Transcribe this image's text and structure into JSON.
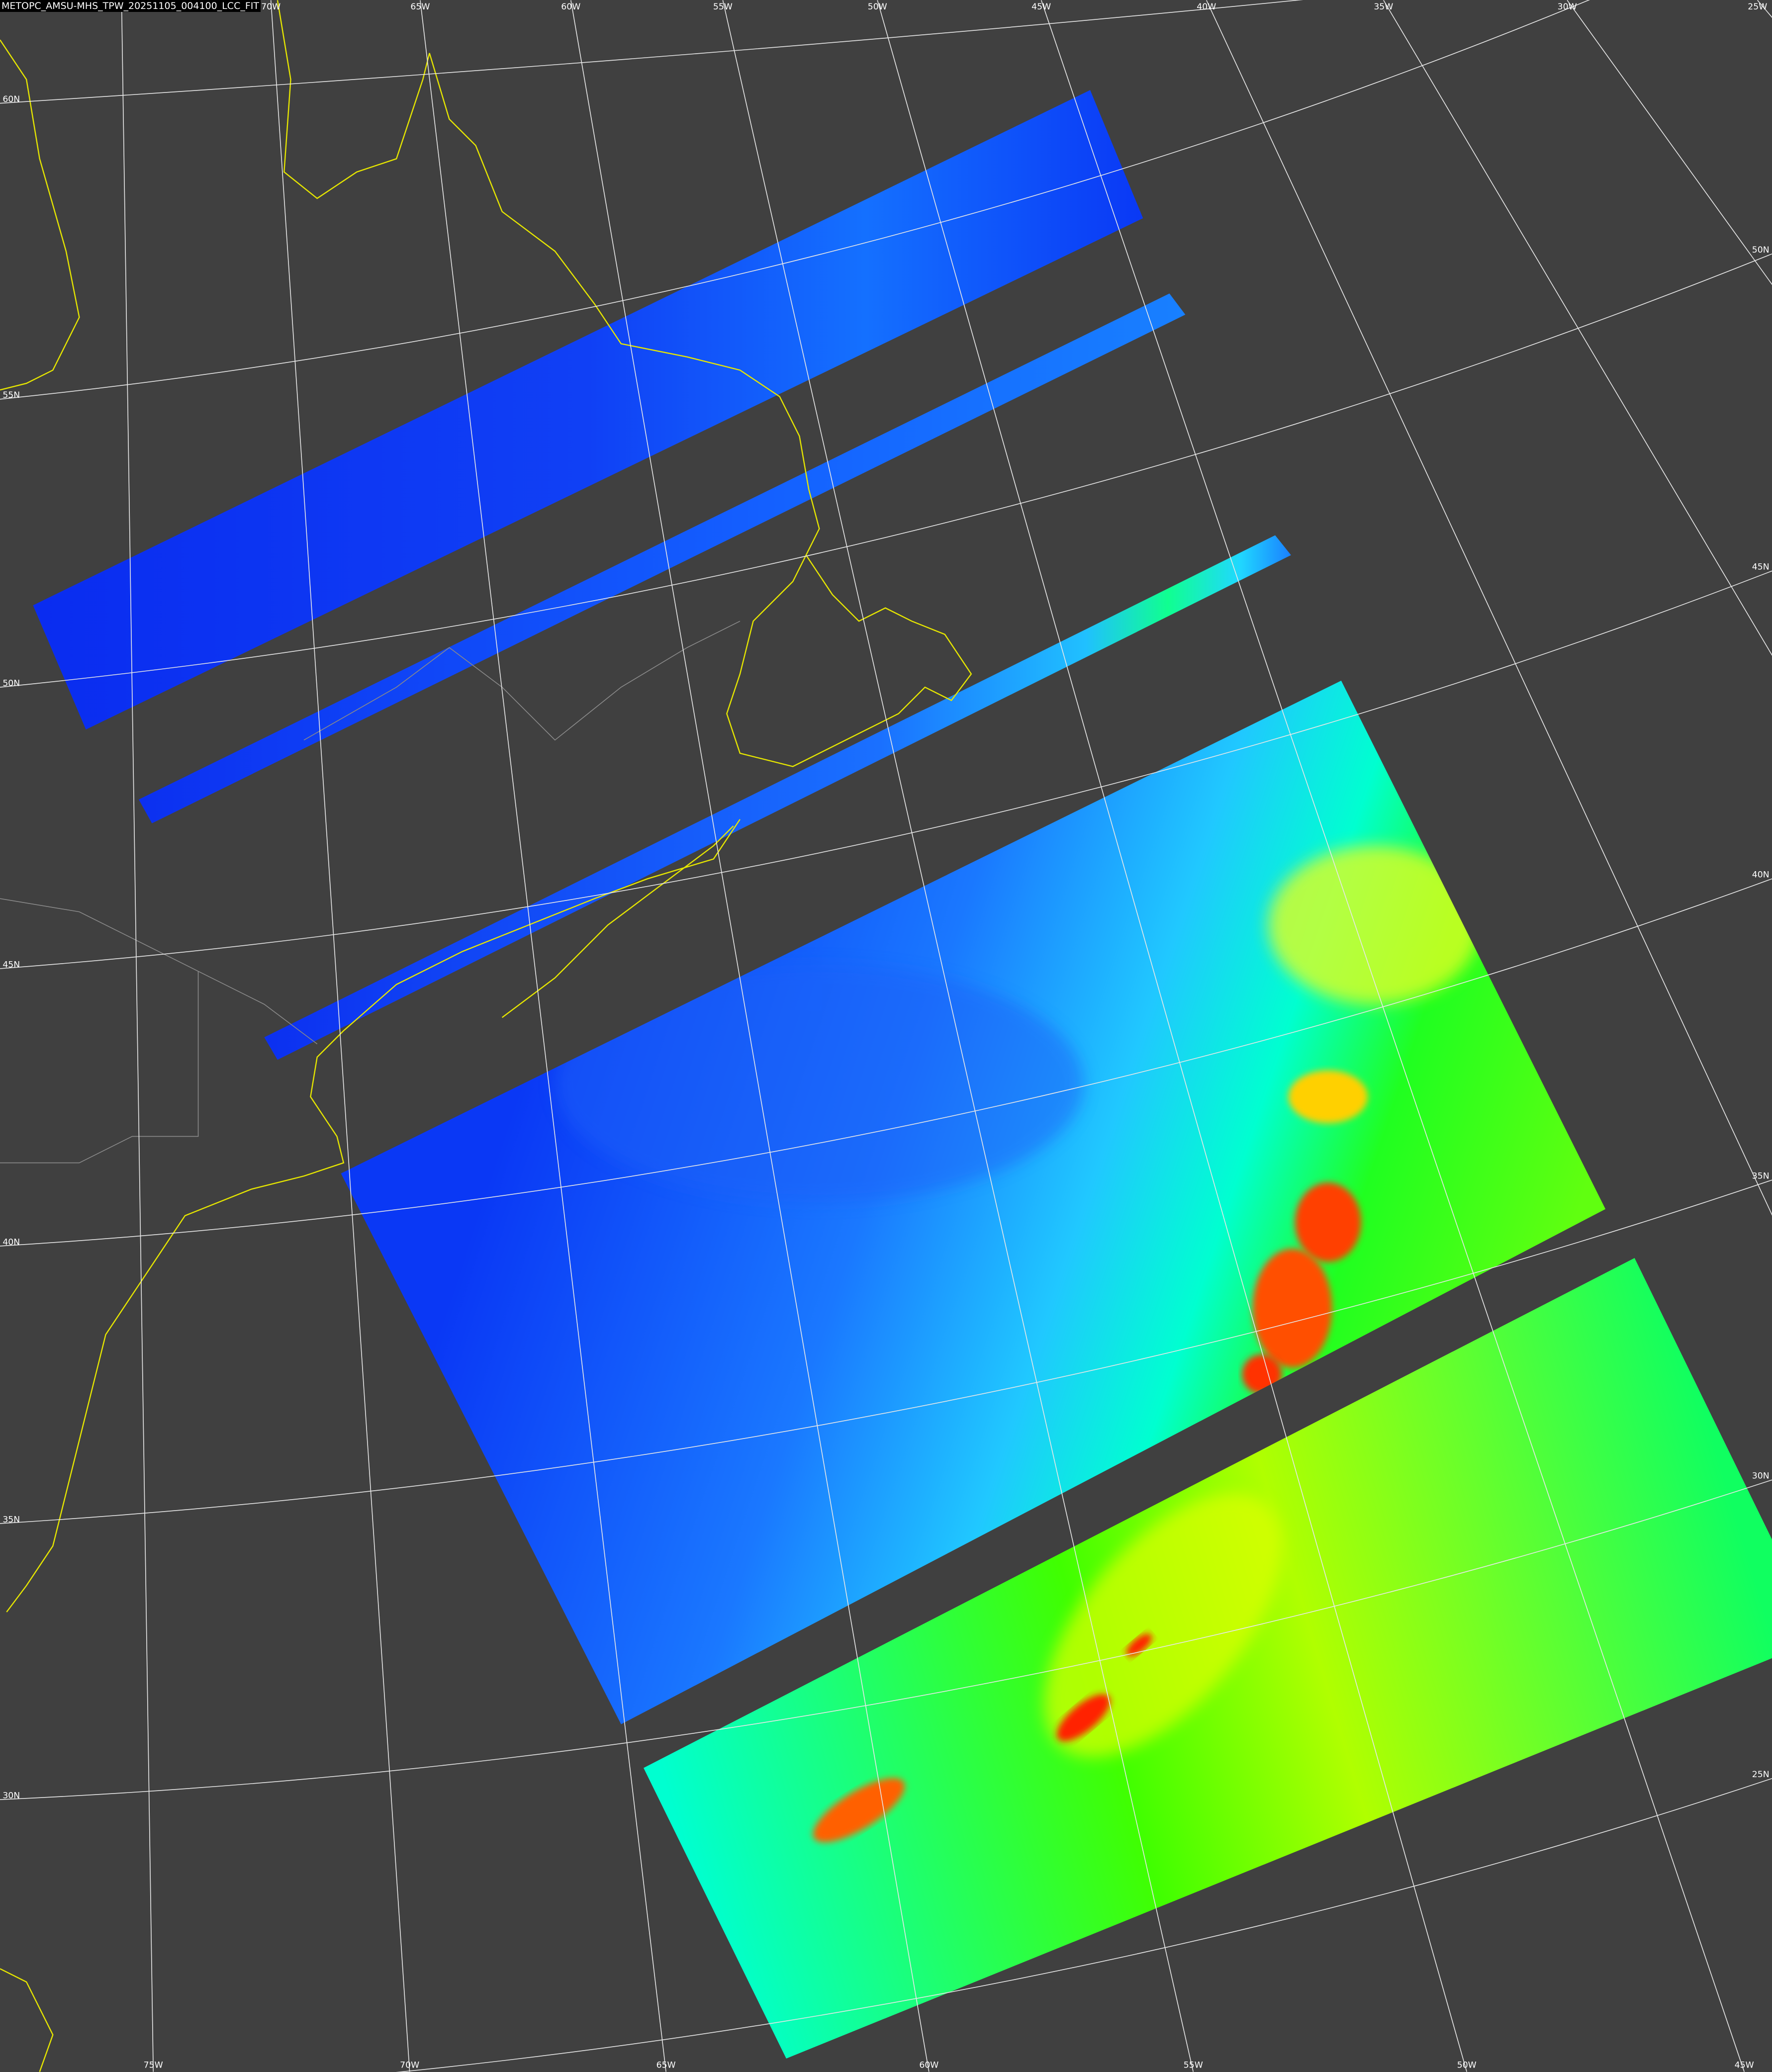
{
  "title": "METOPC_AMSU-MHS_TPW_20251105_004100_LCC_FIT",
  "colors": {
    "background": "#404040",
    "graticule": "#e8e8e8",
    "coastline": "#e6e600",
    "borders": "#8a8a8a",
    "title_bg": "#000000"
  },
  "graticule": {
    "top_lon_labels": [
      "70W",
      "65W",
      "60W",
      "55W",
      "50W",
      "45W",
      "40W",
      "35W",
      "30W",
      "25W"
    ],
    "bottom_lon_labels": [
      "75W",
      "70W",
      "65W",
      "60W",
      "55W",
      "50W",
      "45W"
    ],
    "left_lat_labels": [
      "60N",
      "55N",
      "50N",
      "45N",
      "40N",
      "35N",
      "30N"
    ],
    "right_lat_labels": [
      "50N",
      "45N",
      "40N",
      "35N",
      "30N",
      "25N"
    ]
  },
  "colormap": [
    "#0a1ef0",
    "#1060ff",
    "#20c8ff",
    "#00ffd0",
    "#00ff40",
    "#c8ff00",
    "#ff8000",
    "#ff2000"
  ]
}
